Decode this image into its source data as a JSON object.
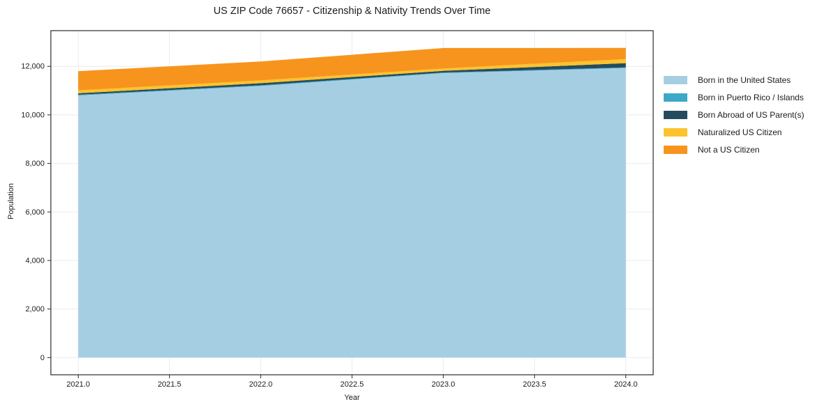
{
  "title": "US ZIP Code 76657 - Citizenship & Nativity Trends Over Time",
  "chart_data": {
    "type": "area",
    "stacked": true,
    "title": "US ZIP Code 76657 - Citizenship & Nativity Trends Over Time",
    "xlabel": "Year",
    "ylabel": "Population",
    "x": [
      2021,
      2022,
      2023,
      2024
    ],
    "series": [
      {
        "name": "Born in the United States",
        "color": "#a6cee3",
        "values": [
          10800,
          11190,
          11720,
          11930
        ]
      },
      {
        "name": "Born in Puerto Rico / Islands",
        "color": "#3da8c7",
        "values": [
          30,
          30,
          25,
          25
        ]
      },
      {
        "name": "Born Abroad of US Parent(s)",
        "color": "#254b5e",
        "values": [
          60,
          85,
          70,
          175
        ]
      },
      {
        "name": "Naturalized US Citizen",
        "color": "#fcc32d",
        "values": [
          120,
          115,
          95,
          170
        ]
      },
      {
        "name": "Not a US Citizen",
        "color": "#f7941e",
        "values": [
          790,
          780,
          845,
          460
        ]
      }
    ],
    "x_tick_labels": [
      "2021.0",
      "2021.5",
      "2022.0",
      "2022.5",
      "2023.0",
      "2023.5",
      "2024.0"
    ],
    "x_tick_values": [
      2021,
      2021.5,
      2022,
      2022.5,
      2023,
      2023.5,
      2024
    ],
    "y_tick_labels": [
      "0",
      "2,000",
      "4,000",
      "6,000",
      "8,000",
      "10,000",
      "12,000"
    ],
    "y_tick_values": [
      0,
      2000,
      4000,
      6000,
      8000,
      10000,
      12000
    ],
    "xlim": [
      2020.85,
      2024.15
    ],
    "ylim": [
      -709,
      13470
    ],
    "grid": true,
    "legend_position": "right of plot, upper area"
  },
  "colors": {
    "grid": "#ebebeb",
    "spine": "#2a2a2a",
    "background": "#ffffff"
  }
}
